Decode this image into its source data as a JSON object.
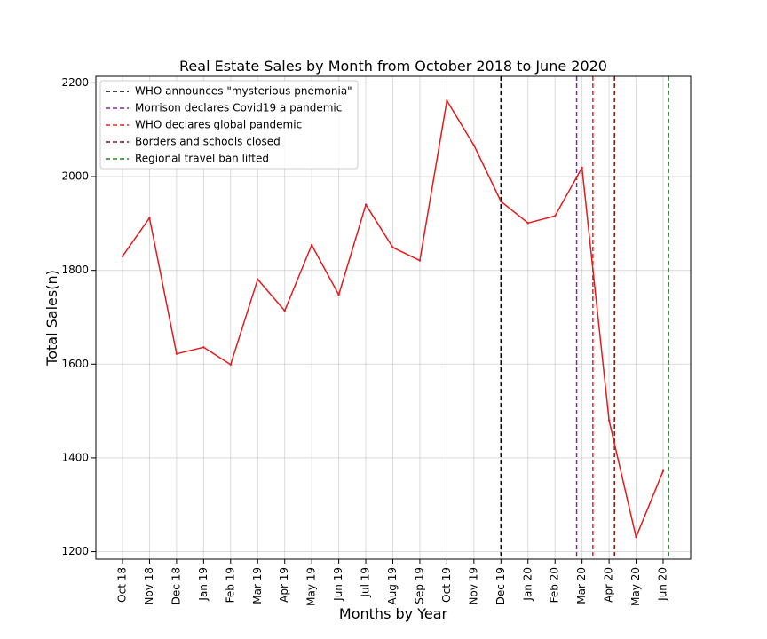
{
  "chart_data": {
    "type": "line",
    "title": "Real Estate Sales by Month from October 2018 to June 2020",
    "xlabel": "Months by Year",
    "ylabel": "Total Sales(n)",
    "categories": [
      "Oct 18",
      "Nov 18",
      "Dec 18",
      "Jan 19",
      "Feb 19",
      "Mar 19",
      "Apr 19",
      "May 19",
      "Jun 19",
      "Jul 19",
      "Aug 19",
      "Sep 19",
      "Oct 19",
      "Nov 19",
      "Dec 19",
      "Jan 20",
      "Feb 20",
      "Mar 20",
      "Apr 20",
      "May 20",
      "Jun 20"
    ],
    "series": [
      {
        "color": "#e41a1c",
        "values": [
          1830,
          1912,
          1622,
          1636,
          1599,
          1781,
          1714,
          1854,
          1748,
          1940,
          1849,
          1821,
          2162,
          2067,
          1947,
          1901,
          1916,
          2019,
          1480,
          1231,
          1372
        ]
      }
    ],
    "ylim": [
      1184,
      2214
    ],
    "yticks": [
      1200,
      1400,
      1600,
      1800,
      2000,
      2200
    ],
    "grid": true,
    "legend_position": "top-left",
    "events": [
      {
        "label": "WHO announces \"mysterious pnemonia\"",
        "x": 14.0,
        "color": "#000000"
      },
      {
        "label": "Morrison declares Covid19 a pandemic",
        "x": 16.8,
        "color": "#8b1fa8"
      },
      {
        "label": "WHO declares global pandemic",
        "x": 17.4,
        "color": "#ff1a1a"
      },
      {
        "label": "Borders and schools closed",
        "x": 18.2,
        "color": "#8b1010"
      },
      {
        "label": "Regional travel ban lifted",
        "x": 20.2,
        "color": "#1a8a1a"
      }
    ]
  }
}
